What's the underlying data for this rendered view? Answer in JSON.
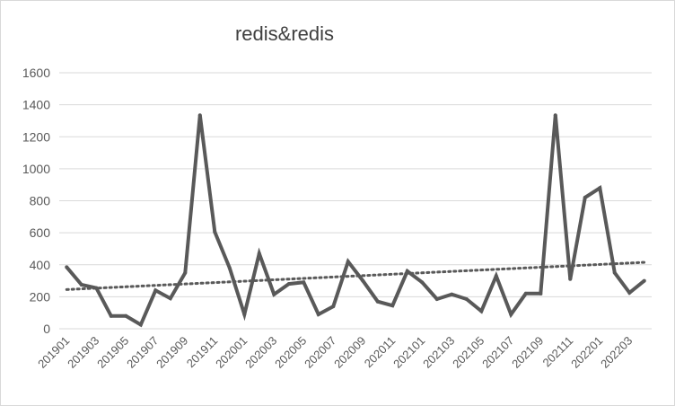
{
  "chart_data": {
    "type": "line",
    "title": "redis&redis",
    "xlabel": "",
    "ylabel": "",
    "ylim": [
      0,
      1600
    ],
    "yticks": [
      0,
      200,
      400,
      600,
      800,
      1000,
      1200,
      1400,
      1600
    ],
    "grid": "horizontal",
    "legend": "none",
    "line_color": "#595959",
    "trendline": {
      "type": "linear",
      "style": "dotted",
      "color": "#595959",
      "start": 245,
      "end": 415
    },
    "x": [
      "201901",
      "201902",
      "201903",
      "201904",
      "201905",
      "201906",
      "201907",
      "201908",
      "201909",
      "201910",
      "201911",
      "201912",
      "202001",
      "202002",
      "202003",
      "202004",
      "202005",
      "202006",
      "202007",
      "202008",
      "202009",
      "202010",
      "202011",
      "202012",
      "202101",
      "202102",
      "202103",
      "202104",
      "202105",
      "202106",
      "202107",
      "202108",
      "202109",
      "202110",
      "202111",
      "202112",
      "202201",
      "202202",
      "202203",
      "202204"
    ],
    "x_tick_labels": [
      "201901",
      "201903",
      "201905",
      "201907",
      "201909",
      "201911",
      "202001",
      "202003",
      "202005",
      "202007",
      "202009",
      "202011",
      "202101",
      "202103",
      "202105",
      "202107",
      "202109",
      "202111",
      "202201",
      "202203"
    ],
    "series": [
      {
        "values": [
          385,
          275,
          255,
          80,
          80,
          25,
          240,
          190,
          350,
          1335,
          605,
          380,
          90,
          470,
          215,
          280,
          290,
          90,
          140,
          420,
          300,
          170,
          145,
          360,
          290,
          185,
          215,
          185,
          110,
          330,
          90,
          220,
          220,
          1335,
          310,
          820,
          880,
          350,
          225,
          300
        ]
      }
    ]
  }
}
